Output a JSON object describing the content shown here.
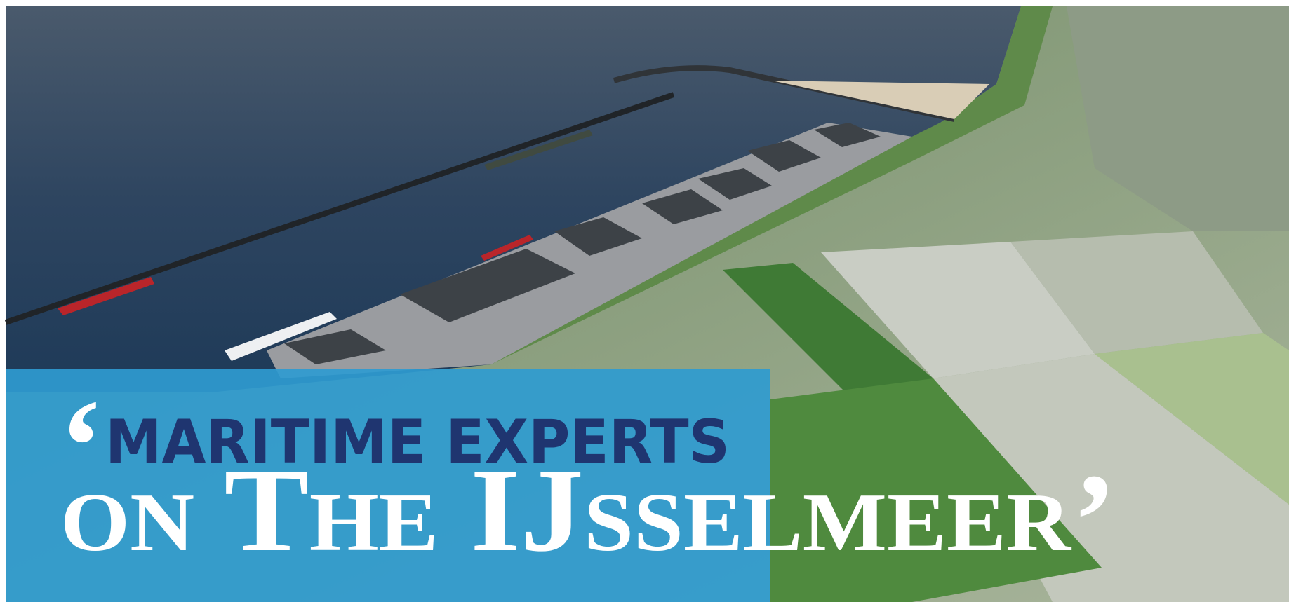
{
  "headline": {
    "quote_open": "‘",
    "line1": "MARITIME EXPERTS",
    "line2": "on The IJsselmeer",
    "quote_close": "’"
  }
}
